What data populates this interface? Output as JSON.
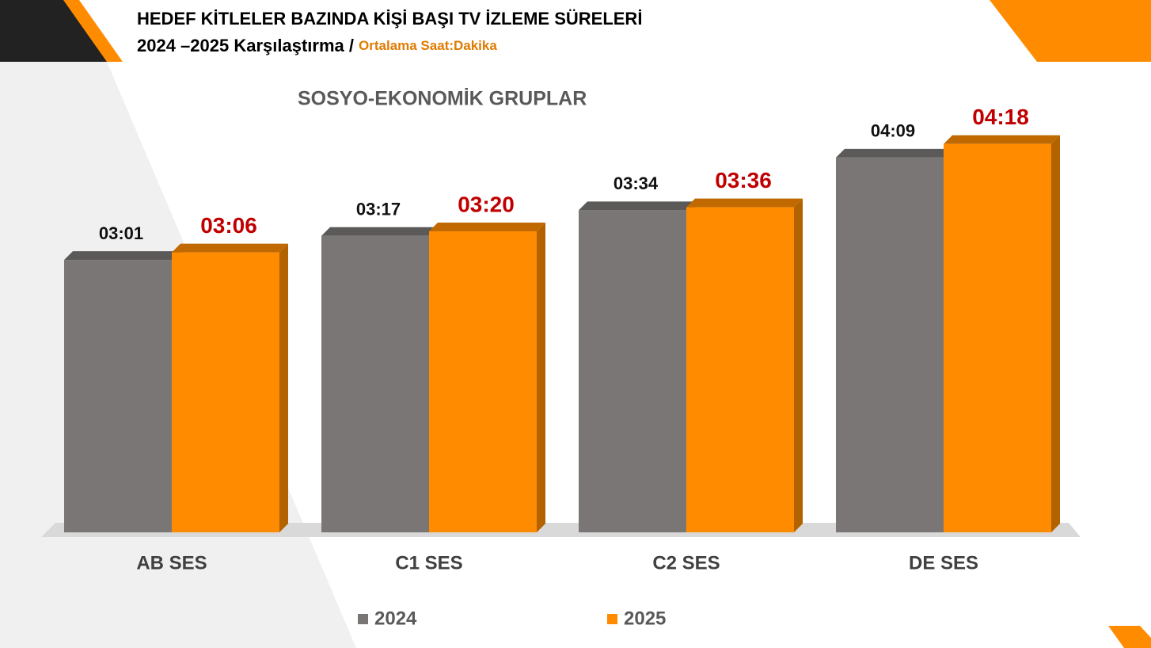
{
  "header": {
    "title": "HEDEF KİTLELER BAZINDA KİŞİ BAŞI TV İZLEME SÜRELERİ",
    "subtitle": "2024 –2025 Karşılaştırma /",
    "unit_note": "Ortalama Saat:Dakika"
  },
  "chart_data": {
    "type": "bar",
    "title": "SOSYO-EKONOMİK GRUPLAR",
    "categories": [
      "AB SES",
      "C1 SES",
      "C2 SES",
      "DE SES"
    ],
    "series": [
      {
        "name": "2024",
        "color": "#7a7676",
        "label_color": "#111111",
        "values": [
          181,
          197,
          214,
          249
        ],
        "value_labels": [
          "03:01",
          "03:17",
          "03:34",
          "04:09"
        ]
      },
      {
        "name": "2025",
        "color": "#ff8c00",
        "label_color": "#c00000",
        "values": [
          186,
          200,
          216,
          258
        ],
        "value_labels": [
          "03:06",
          "03:20",
          "03:36",
          "04:18"
        ]
      }
    ],
    "ylim": [
      0,
      300
    ]
  }
}
